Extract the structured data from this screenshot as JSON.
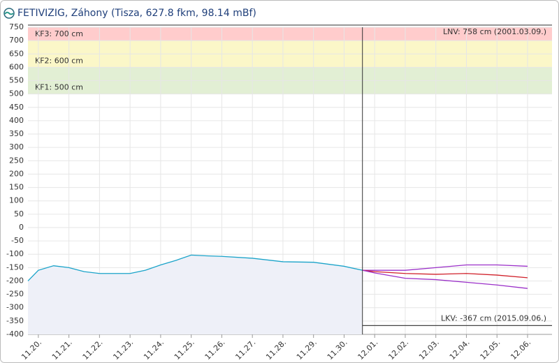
{
  "chart_data": {
    "type": "line",
    "title": "FETIVIZIG, Záhony (Tisza, 627.8 fkm, 98.14 mBf)",
    "xlim": [
      -0.34,
      16.8
    ],
    "xticks": [
      {
        "value": 0,
        "label": "11.20."
      },
      {
        "value": 1,
        "label": "11.21."
      },
      {
        "value": 2,
        "label": "11.22."
      },
      {
        "value": 3,
        "label": "11.23."
      },
      {
        "value": 4,
        "label": "11.24."
      },
      {
        "value": 5,
        "label": "11.25."
      },
      {
        "value": 6,
        "label": "11.26."
      },
      {
        "value": 7,
        "label": "11.27."
      },
      {
        "value": 8,
        "label": "11.28."
      },
      {
        "value": 9,
        "label": "11.29."
      },
      {
        "value": 10,
        "label": "11.30."
      },
      {
        "value": 11,
        "label": "12.01."
      },
      {
        "value": 12,
        "label": "12.02."
      },
      {
        "value": 13,
        "label": "12.03."
      },
      {
        "value": 14,
        "label": "12.04."
      },
      {
        "value": 15,
        "label": "12.05."
      },
      {
        "value": 16,
        "label": "12.06."
      }
    ],
    "ylim": [
      -400,
      750
    ],
    "yticks": [
      750,
      700,
      650,
      600,
      550,
      500,
      450,
      400,
      350,
      300,
      250,
      200,
      150,
      100,
      50,
      0,
      -50,
      -100,
      -150,
      -200,
      -250,
      -300,
      -350,
      -400
    ],
    "grid": true,
    "bands": [
      {
        "label": "KF3: 700 cm",
        "value": 700,
        "color": "#ffcccc"
      },
      {
        "label": "KF2: 600 cm",
        "value": 600,
        "color": "#fbf7c8"
      },
      {
        "label": "KF1: 500 cm",
        "value": 500,
        "color": "#e2efd4"
      }
    ],
    "reference_lines": [
      {
        "label": "LNV: 758 cm (2001.03.09.)",
        "value": 758
      },
      {
        "label": "LKV: -367 cm (2015.09.06.)",
        "value": -367
      }
    ],
    "now_x": 10.6,
    "series": [
      {
        "color": "#1aa3c9",
        "area": true,
        "x": [
          -0.34,
          0,
          0.5,
          1,
          1.5,
          2,
          3,
          3.5,
          4,
          4.5,
          5,
          5.5,
          6,
          7,
          8,
          9,
          10,
          10.6
        ],
        "values": [
          -200,
          -160,
          -143,
          -150,
          -165,
          -172,
          -172,
          -160,
          -140,
          -123,
          -103,
          -106,
          -108,
          -115,
          -128,
          -130,
          -145,
          -160
        ]
      },
      {
        "color": "#9b30c9",
        "x": [
          10.6,
          11,
          12,
          13,
          14,
          15,
          16
        ],
        "values": [
          -160,
          -160,
          -160,
          -150,
          -140,
          -140,
          -145
        ]
      },
      {
        "color": "#d0202a",
        "x": [
          10.6,
          11,
          12,
          13,
          14,
          15,
          16
        ],
        "values": [
          -160,
          -165,
          -172,
          -175,
          -172,
          -178,
          -188
        ]
      },
      {
        "color": "#9b30c9",
        "x": [
          10.6,
          11,
          12,
          13,
          14,
          15,
          16
        ],
        "values": [
          -160,
          -170,
          -190,
          -195,
          -205,
          -215,
          -228
        ]
      }
    ]
  }
}
